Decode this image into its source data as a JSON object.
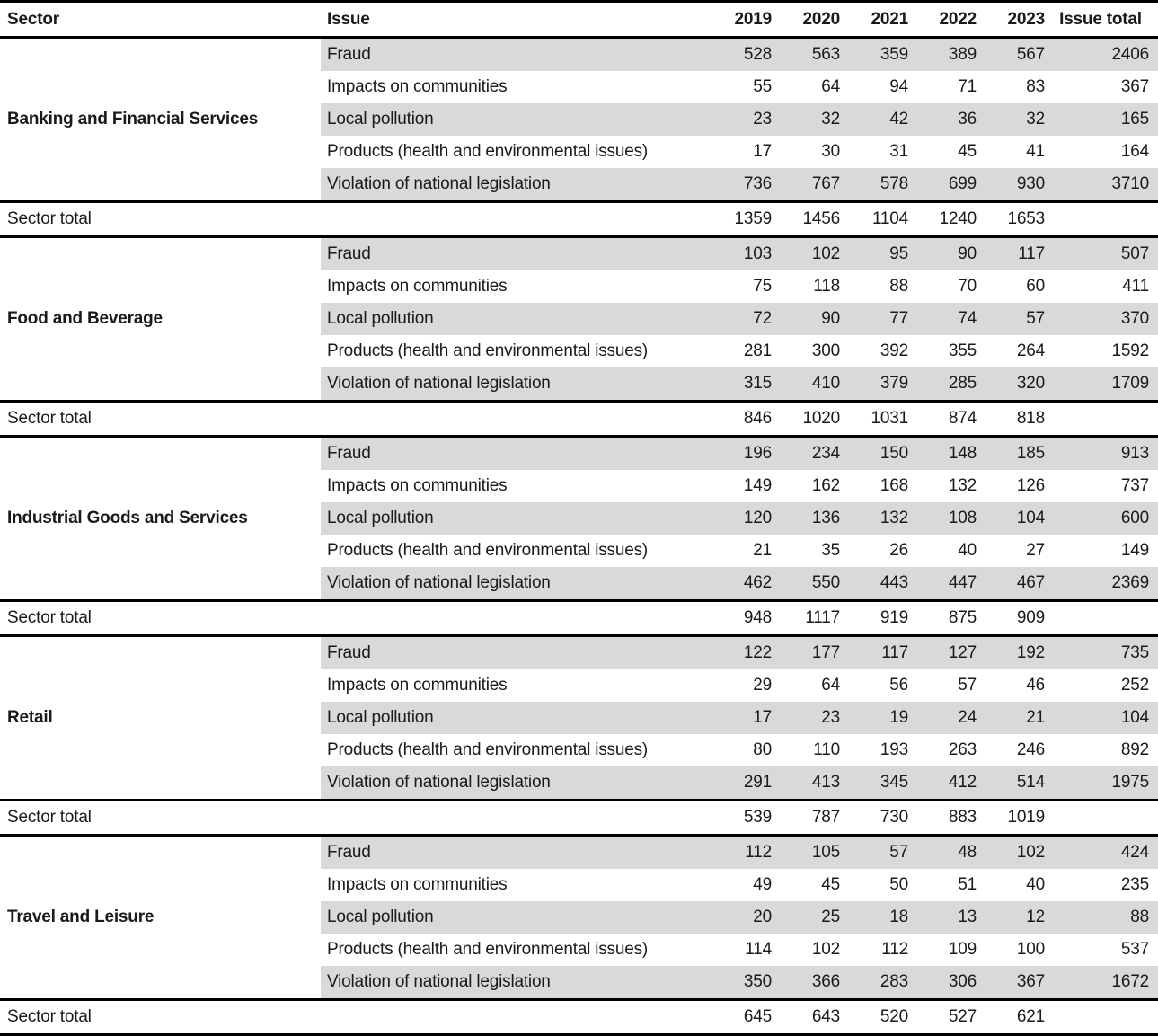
{
  "chart_data": {
    "type": "table",
    "columns": [
      "Sector",
      "Issue",
      "2019",
      "2020",
      "2021",
      "2022",
      "2023",
      "Issue total"
    ],
    "sector_total_label": "Sector total",
    "sectors": [
      {
        "name": "Banking and Financial Services",
        "rows": [
          {
            "issue": "Fraud",
            "values": [
              528,
              563,
              359,
              389,
              567
            ],
            "issue_total": 2406
          },
          {
            "issue": "Impacts on communities",
            "values": [
              55,
              64,
              94,
              71,
              83
            ],
            "issue_total": 367
          },
          {
            "issue": "Local pollution",
            "values": [
              23,
              32,
              42,
              36,
              32
            ],
            "issue_total": 165
          },
          {
            "issue": "Products (health and environmental issues)",
            "values": [
              17,
              30,
              31,
              45,
              41
            ],
            "issue_total": 164
          },
          {
            "issue": "Violation of national legislation",
            "values": [
              736,
              767,
              578,
              699,
              930
            ],
            "issue_total": 3710
          }
        ],
        "sector_total": [
          1359,
          1456,
          1104,
          1240,
          1653
        ]
      },
      {
        "name": "Food and Beverage",
        "rows": [
          {
            "issue": "Fraud",
            "values": [
              103,
              102,
              95,
              90,
              117
            ],
            "issue_total": 507
          },
          {
            "issue": "Impacts on communities",
            "values": [
              75,
              118,
              88,
              70,
              60
            ],
            "issue_total": 411
          },
          {
            "issue": "Local pollution",
            "values": [
              72,
              90,
              77,
              74,
              57
            ],
            "issue_total": 370
          },
          {
            "issue": "Products (health and environmental issues)",
            "values": [
              281,
              300,
              392,
              355,
              264
            ],
            "issue_total": 1592
          },
          {
            "issue": "Violation of national legislation",
            "values": [
              315,
              410,
              379,
              285,
              320
            ],
            "issue_total": 1709
          }
        ],
        "sector_total": [
          846,
          1020,
          1031,
          874,
          818
        ]
      },
      {
        "name": "Industrial Goods and Services",
        "rows": [
          {
            "issue": "Fraud",
            "values": [
              196,
              234,
              150,
              148,
              185
            ],
            "issue_total": 913
          },
          {
            "issue": "Impacts on communities",
            "values": [
              149,
              162,
              168,
              132,
              126
            ],
            "issue_total": 737
          },
          {
            "issue": "Local pollution",
            "values": [
              120,
              136,
              132,
              108,
              104
            ],
            "issue_total": 600
          },
          {
            "issue": "Products (health and environmental issues)",
            "values": [
              21,
              35,
              26,
              40,
              27
            ],
            "issue_total": 149
          },
          {
            "issue": "Violation of national legislation",
            "values": [
              462,
              550,
              443,
              447,
              467
            ],
            "issue_total": 2369
          }
        ],
        "sector_total": [
          948,
          1117,
          919,
          875,
          909
        ]
      },
      {
        "name": "Retail",
        "rows": [
          {
            "issue": "Fraud",
            "values": [
              122,
              177,
              117,
              127,
              192
            ],
            "issue_total": 735
          },
          {
            "issue": "Impacts on communities",
            "values": [
              29,
              64,
              56,
              57,
              46
            ],
            "issue_total": 252
          },
          {
            "issue": "Local pollution",
            "values": [
              17,
              23,
              19,
              24,
              21
            ],
            "issue_total": 104
          },
          {
            "issue": "Products (health and environmental issues)",
            "values": [
              80,
              110,
              193,
              263,
              246
            ],
            "issue_total": 892
          },
          {
            "issue": "Violation of national legislation",
            "values": [
              291,
              413,
              345,
              412,
              514
            ],
            "issue_total": 1975
          }
        ],
        "sector_total": [
          539,
          787,
          730,
          883,
          1019
        ]
      },
      {
        "name": "Travel and Leisure",
        "rows": [
          {
            "issue": "Fraud",
            "values": [
              112,
              105,
              57,
              48,
              102
            ],
            "issue_total": 424
          },
          {
            "issue": "Impacts on communities",
            "values": [
              49,
              45,
              50,
              51,
              40
            ],
            "issue_total": 235
          },
          {
            "issue": "Local pollution",
            "values": [
              20,
              25,
              18,
              13,
              12
            ],
            "issue_total": 88
          },
          {
            "issue": "Products (health and environmental issues)",
            "values": [
              114,
              102,
              112,
              109,
              100
            ],
            "issue_total": 537
          },
          {
            "issue": "Violation of national legislation",
            "values": [
              350,
              366,
              283,
              306,
              367
            ],
            "issue_total": 1672
          }
        ],
        "sector_total": [
          645,
          643,
          520,
          527,
          621
        ]
      }
    ]
  },
  "colors": {
    "row_shade": "#d9d9d9",
    "border": "#000000",
    "text": "#1a1a1a",
    "background": "#ffffff"
  }
}
